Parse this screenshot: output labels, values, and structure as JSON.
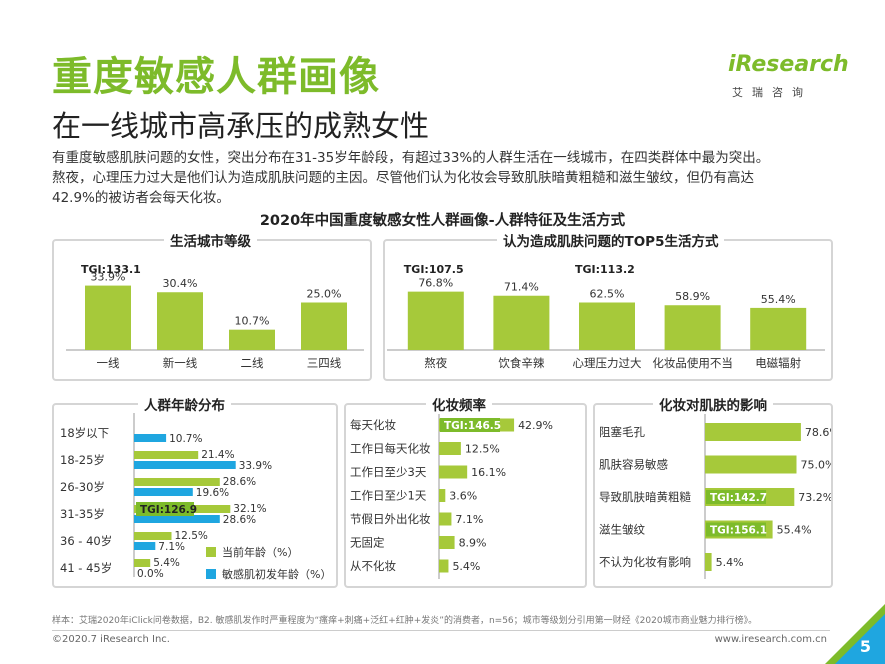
{
  "header": {
    "title": "重度敏感人群画像",
    "subtitle": "在一线城市高承压的成熟女性",
    "logo_text": "iResearch",
    "logo_sub": "艾瑞咨询"
  },
  "intro": {
    "line1": "有重度敏感肌肤问题的女性，突出分布在31-35岁年龄段，有超过33%的人群生活在一线城市，在四类群体中最为突出。",
    "line2": "熬夜，心理压力过大是他们认为造成肌肤问题的主因。尽管他们认为化妆会导致肌肤暗黄粗糙和滋生皱纹，但仍有高达",
    "line3": "42.9%的被访者会每天化妆。"
  },
  "main_title": "2020年中国重度敏感女性人群画像-人群特征及生活方式",
  "colors": {
    "green": "#a6c93a",
    "blue": "#1fa6e0",
    "tgi_bg": "#7dbb2a"
  },
  "chart_data": [
    {
      "type": "bar",
      "title": "生活城市等级",
      "categories": [
        "一线",
        "新一线",
        "二线",
        "三四线"
      ],
      "values": [
        33.9,
        30.4,
        10.7,
        25.0
      ],
      "value_labels": [
        "33.9%",
        "30.4%",
        "10.7%",
        "25.0%"
      ],
      "annotations": [
        {
          "category": "一线",
          "text": "TGI:133.1"
        }
      ]
    },
    {
      "type": "bar",
      "title": "认为造成肌肤问题的TOP5生活方式",
      "categories": [
        "熬夜",
        "饮食辛辣",
        "心理压力过大",
        "化妆品使用不当",
        "电磁辐射"
      ],
      "values": [
        76.8,
        71.4,
        62.5,
        58.9,
        55.4
      ],
      "value_labels": [
        "76.8%",
        "71.4%",
        "62.5%",
        "58.9%",
        "55.4%"
      ],
      "annotations": [
        {
          "category": "熬夜",
          "text": "TGI:107.5"
        },
        {
          "category": "心理压力过大",
          "text": "TGI:113.2"
        }
      ]
    },
    {
      "type": "bar",
      "orientation": "horizontal",
      "title": "人群年龄分布",
      "categories": [
        "18岁以下",
        "18-25岁",
        "26-30岁",
        "31-35岁",
        "36 - 40岁",
        "41 - 45岁"
      ],
      "series": [
        {
          "name": "当前年龄（%）",
          "values": [
            0,
            21.4,
            28.6,
            32.1,
            12.5,
            5.4
          ],
          "labels": [
            "",
            "21.4%",
            "28.6%",
            "32.1%",
            "12.5%",
            "5.4%"
          ]
        },
        {
          "name": "敏感肌初发年龄（%）",
          "values": [
            10.7,
            33.9,
            19.6,
            28.6,
            7.1,
            0.0
          ],
          "labels": [
            "10.7%",
            "33.9%",
            "19.6%",
            "28.6%",
            "7.1%",
            "0.0%"
          ]
        }
      ],
      "annotations": [
        {
          "category": "31-35岁",
          "text": "TGI:126.9"
        }
      ]
    },
    {
      "type": "bar",
      "orientation": "horizontal",
      "title": "化妆频率",
      "categories": [
        "每天化妆",
        "工作日每天化妆",
        "工作日至少3天",
        "工作日至少1天",
        "节假日外出化妆",
        "无固定",
        "从不化妆"
      ],
      "values": [
        42.9,
        12.5,
        16.1,
        3.6,
        7.1,
        8.9,
        5.4
      ],
      "value_labels": [
        "42.9%",
        "12.5%",
        "16.1%",
        "3.6%",
        "7.1%",
        "8.9%",
        "5.4%"
      ],
      "annotations": [
        {
          "category": "每天化妆",
          "text": "TGI:146.5"
        }
      ]
    },
    {
      "type": "bar",
      "orientation": "horizontal",
      "title": "化妆对肌肤的影响",
      "categories": [
        "阻塞毛孔",
        "肌肤容易敏感",
        "导致肌肤暗黄粗糙",
        "滋生皱纹",
        "不认为化妆有影响"
      ],
      "values": [
        78.6,
        75.0,
        73.2,
        55.4,
        5.4
      ],
      "value_labels": [
        "78.6%",
        "75.0%",
        "73.2%",
        "55.4%",
        "5.4%"
      ],
      "annotations": [
        {
          "category": "导致肌肤暗黄粗糙",
          "text": "TGI:142.7"
        },
        {
          "category": "滋生皱纹",
          "text": "TGI:156.1"
        }
      ]
    }
  ],
  "footer": {
    "note": "样本：艾瑞2020年iClick问卷数据，B2. 敏感肌发作时严重程度为“瘙痒+刺痛+泛红+红肿+发炎”的消费者，n=56；城市等级划分引用第一财经《2020城市商业魅力排行榜》。",
    "copyright": "©2020.7 iResearch Inc.",
    "site": "www.iresearch.com.cn",
    "page": "5"
  }
}
